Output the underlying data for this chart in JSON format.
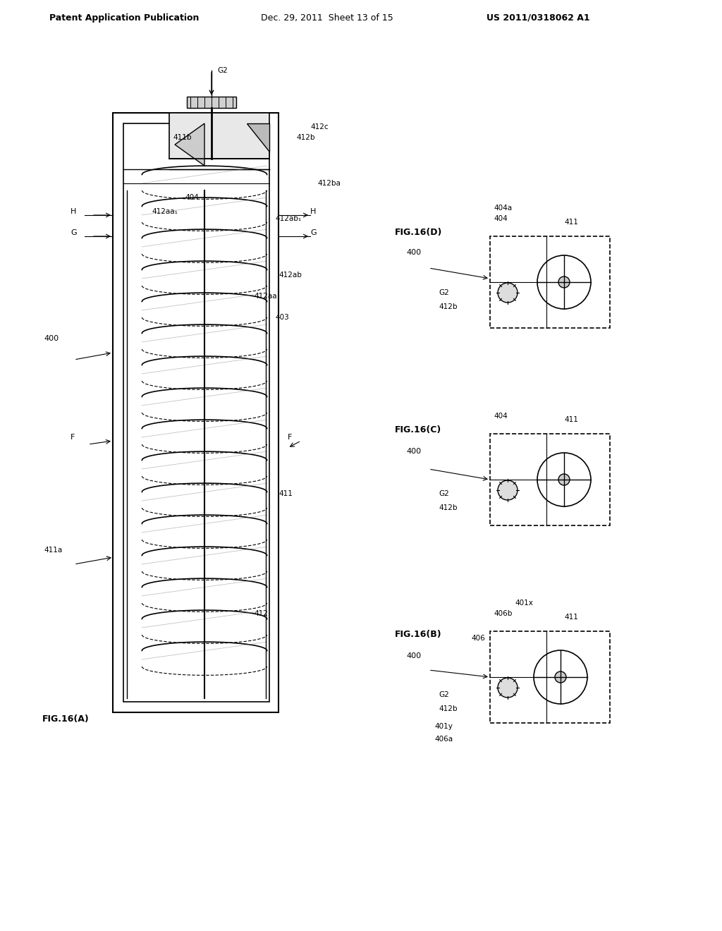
{
  "title_left": "Patent Application Publication",
  "title_mid": "Dec. 29, 2011  Sheet 13 of 15",
  "title_right": "US 2011/0318062 A1",
  "bg_color": "#ffffff",
  "fig_label_A": "FIG.16(A)",
  "fig_label_B": "FIG.16(B)",
  "fig_label_C": "FIG.16(C)",
  "fig_label_D": "FIG.16(D)"
}
